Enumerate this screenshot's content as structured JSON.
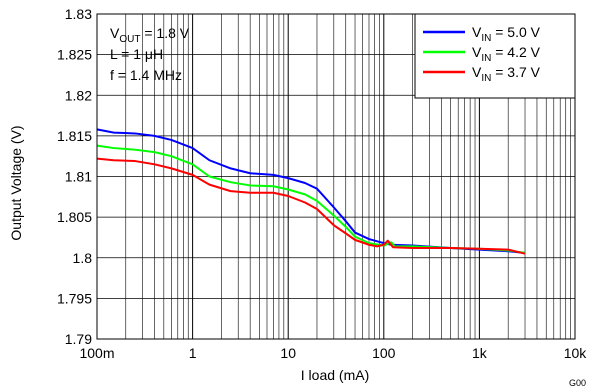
{
  "chart_data": {
    "type": "line",
    "xlabel": "I load (mA)",
    "ylabel": "Output Voltage (V)",
    "xscale": "log",
    "xlim": [
      0.1,
      10000
    ],
    "ylim": [
      1.79,
      1.83
    ],
    "grid": true,
    "legend_position": "top-right",
    "x_tick_labels": [
      "100m",
      "1",
      "10",
      "100",
      "1k",
      "10k"
    ],
    "x_ticks": [
      0.1,
      1,
      10,
      100,
      1000,
      10000
    ],
    "y_ticks": [
      1.79,
      1.795,
      1.8,
      1.805,
      1.81,
      1.815,
      1.82,
      1.825,
      1.83
    ],
    "y_tick_labels": [
      "1.79",
      "1.795",
      "1.8",
      "1.805",
      "1.81",
      "1.815",
      "1.82",
      "1.825",
      "1.83"
    ],
    "annotations": [
      {
        "main": "V",
        "sub": "OUT",
        "rest": " = 1.8 V"
      },
      {
        "main": "L = 1 μH",
        "sub": "",
        "rest": ""
      },
      {
        "main": "f = 1.4 MHz",
        "sub": "",
        "rest": ""
      }
    ],
    "figure_code": "G00",
    "series": [
      {
        "label_main": "V",
        "label_sub": "IN",
        "label_rest": " = 5.0 V",
        "color": "#0000ff",
        "points": [
          [
            0.1,
            1.8158
          ],
          [
            0.15,
            1.8154
          ],
          [
            0.25,
            1.8153
          ],
          [
            0.4,
            1.815
          ],
          [
            0.6,
            1.8145
          ],
          [
            1,
            1.8135
          ],
          [
            1.5,
            1.812
          ],
          [
            2.5,
            1.811
          ],
          [
            4,
            1.8104
          ],
          [
            7,
            1.8102
          ],
          [
            10,
            1.8098
          ],
          [
            15,
            1.8092
          ],
          [
            20,
            1.8085
          ],
          [
            30,
            1.8062
          ],
          [
            40,
            1.8045
          ],
          [
            50,
            1.8031
          ],
          [
            70,
            1.8023
          ],
          [
            100,
            1.8018
          ],
          [
            120,
            1.8016
          ],
          [
            200,
            1.8015
          ],
          [
            500,
            1.8012
          ],
          [
            1000,
            1.801
          ],
          [
            2000,
            1.8008
          ],
          [
            3000,
            1.8006
          ]
        ]
      },
      {
        "label_main": "V",
        "label_sub": "IN",
        "label_rest": " = 4.2 V",
        "color": "#00ff00",
        "points": [
          [
            0.1,
            1.8138
          ],
          [
            0.15,
            1.8135
          ],
          [
            0.25,
            1.8133
          ],
          [
            0.4,
            1.813
          ],
          [
            0.6,
            1.8125
          ],
          [
            1,
            1.8115
          ],
          [
            1.5,
            1.81
          ],
          [
            2.5,
            1.8093
          ],
          [
            4,
            1.8089
          ],
          [
            7,
            1.8088
          ],
          [
            10,
            1.8084
          ],
          [
            15,
            1.8078
          ],
          [
            20,
            1.807
          ],
          [
            30,
            1.8052
          ],
          [
            40,
            1.8038
          ],
          [
            50,
            1.8026
          ],
          [
            70,
            1.8018
          ],
          [
            100,
            1.8015
          ],
          [
            120,
            1.8019
          ],
          [
            130,
            1.8014
          ],
          [
            200,
            1.8014
          ],
          [
            500,
            1.8012
          ],
          [
            1000,
            1.8011
          ],
          [
            2000,
            1.8009
          ],
          [
            3000,
            1.8006
          ]
        ]
      },
      {
        "label_main": "V",
        "label_sub": "IN",
        "label_rest": " = 3.7 V",
        "color": "#ff0000",
        "points": [
          [
            0.1,
            1.8122
          ],
          [
            0.15,
            1.812
          ],
          [
            0.25,
            1.8119
          ],
          [
            0.4,
            1.8115
          ],
          [
            0.6,
            1.811
          ],
          [
            1,
            1.8102
          ],
          [
            1.5,
            1.809
          ],
          [
            2.5,
            1.8082
          ],
          [
            4,
            1.808
          ],
          [
            7,
            1.808
          ],
          [
            10,
            1.8076
          ],
          [
            15,
            1.8068
          ],
          [
            20,
            1.806
          ],
          [
            30,
            1.804
          ],
          [
            40,
            1.803
          ],
          [
            50,
            1.8022
          ],
          [
            70,
            1.8016
          ],
          [
            85,
            1.8014
          ],
          [
            100,
            1.8016
          ],
          [
            110,
            1.8021
          ],
          [
            125,
            1.8013
          ],
          [
            200,
            1.8012
          ],
          [
            500,
            1.8012
          ],
          [
            1000,
            1.8011
          ],
          [
            2000,
            1.801
          ],
          [
            3000,
            1.8005
          ]
        ]
      }
    ]
  }
}
